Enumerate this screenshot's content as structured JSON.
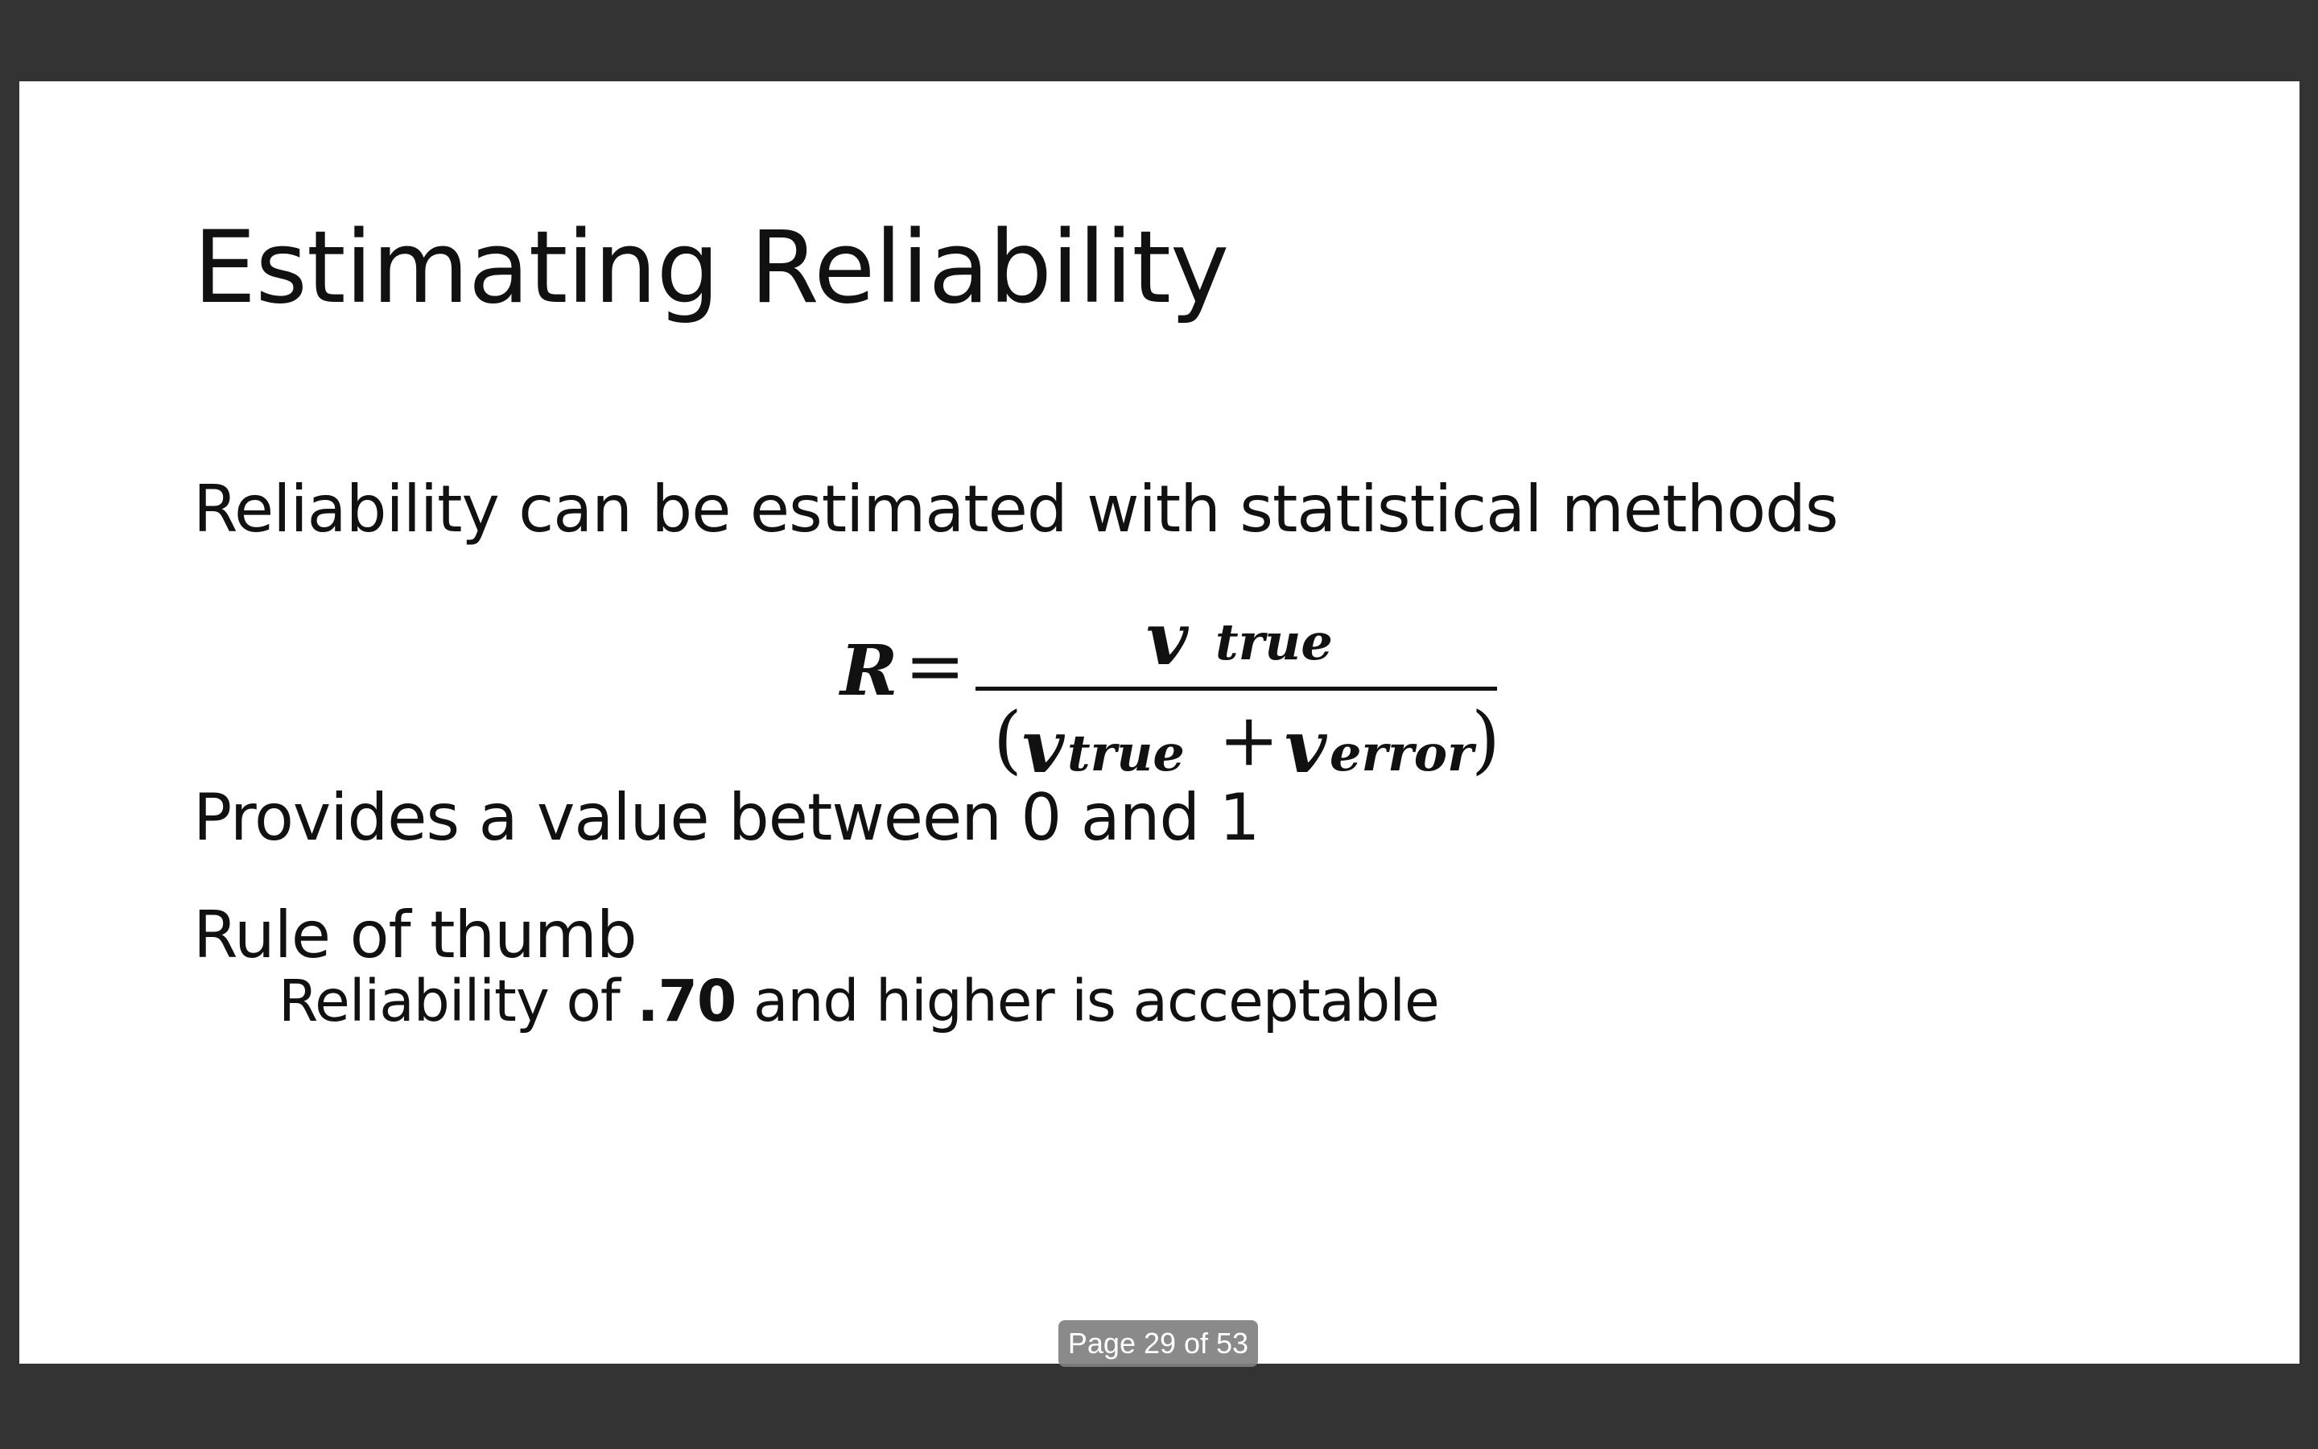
{
  "slide": {
    "title": "Estimating Reliability",
    "bullets": {
      "statistical": "Reliability can be estimated with statistical methods",
      "range": "Provides a value between 0 and 1",
      "rule": "Rule of thumb",
      "threshold_prefix": "Reliability of ",
      "threshold_value": ".70",
      "threshold_suffix": " and higher is acceptable"
    },
    "formula": {
      "lhs": "R",
      "equals": "=",
      "numerator_var": "v",
      "numerator_sub": "true",
      "denominator_open": "(",
      "denominator_var1": "v",
      "denominator_sub1": "true",
      "denominator_plus": "+",
      "denominator_var2": "v",
      "denominator_sub2": "error",
      "denominator_close": ")"
    }
  },
  "viewer": {
    "page_indicator": "Page 29 of 53"
  },
  "colors": {
    "viewer_background": "#333333",
    "slide_background": "#ffffff",
    "text": "#111111",
    "page_indicator_background": "#808080"
  }
}
